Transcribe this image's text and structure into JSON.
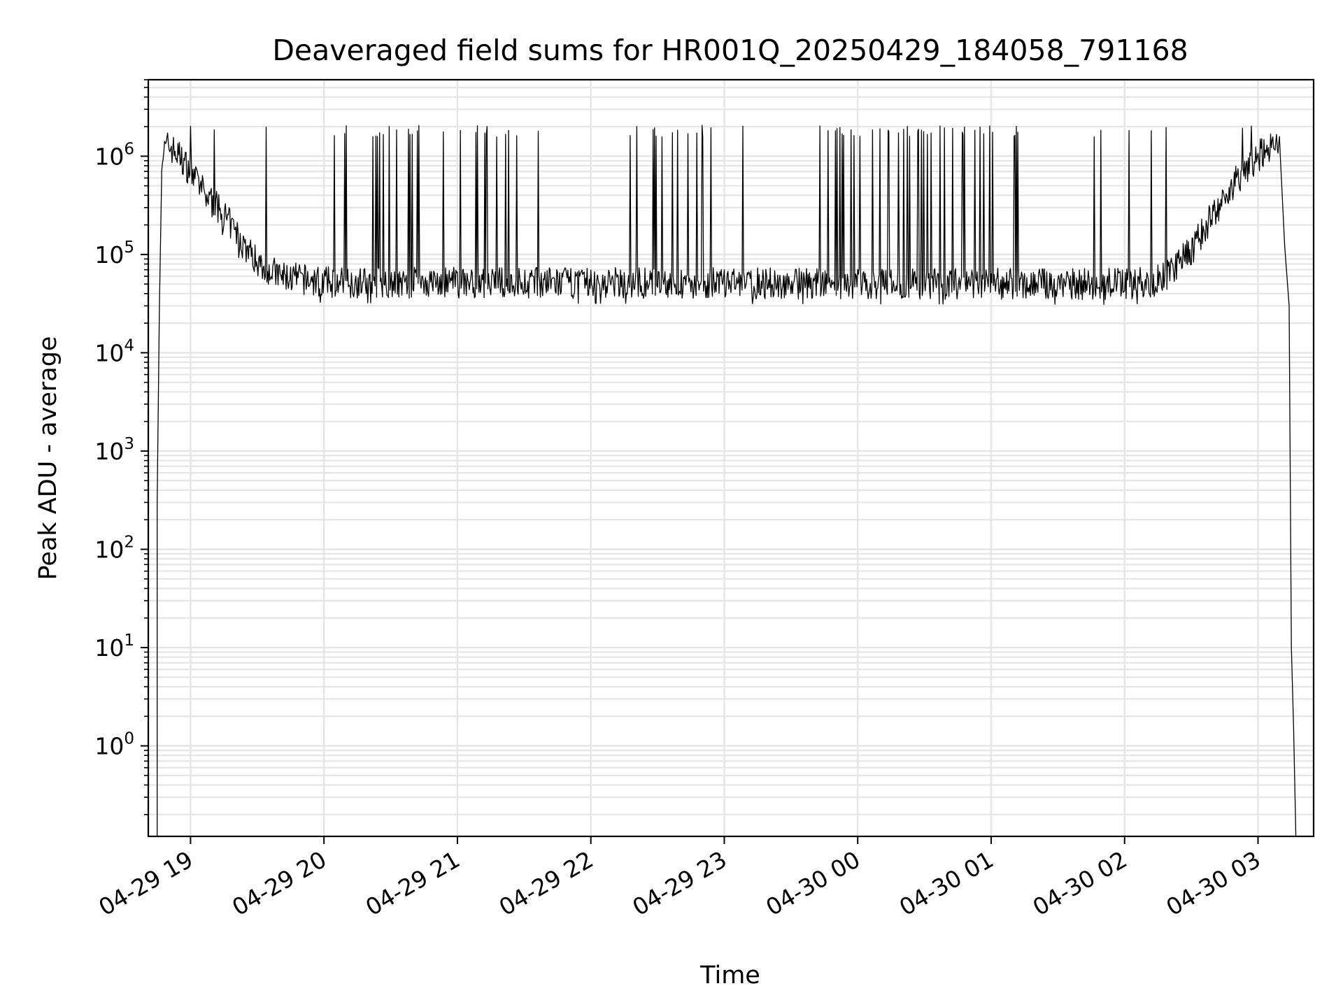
{
  "chart_data": {
    "type": "line",
    "title": "Deaveraged field sums for HR001Q_20250429_184058_791168",
    "xlabel": "Time",
    "ylabel": "Peak ADU - average",
    "yscale": "log",
    "ylim": [
      0.12,
      6000000
    ],
    "xlim": [
      "2025-04-29 18:41",
      "2025-04-30 03:25"
    ],
    "grid": true,
    "line_color": "#000000",
    "grid_color": "#e5e5e5",
    "x_ticks": [
      {
        "t": "2025-04-29 19:00",
        "label": "04-29 19"
      },
      {
        "t": "2025-04-29 20:00",
        "label": "04-29 20"
      },
      {
        "t": "2025-04-29 21:00",
        "label": "04-29 21"
      },
      {
        "t": "2025-04-29 22:00",
        "label": "04-29 22"
      },
      {
        "t": "2025-04-29 23:00",
        "label": "04-29 23"
      },
      {
        "t": "2025-04-30 00:00",
        "label": "04-30 00"
      },
      {
        "t": "2025-04-30 01:00",
        "label": "04-30 01"
      },
      {
        "t": "2025-04-30 02:00",
        "label": "04-30 02"
      },
      {
        "t": "2025-04-30 03:00",
        "label": "04-30 03"
      }
    ],
    "y_ticks": [
      {
        "exp": "0",
        "base": "10"
      },
      {
        "exp": "1",
        "base": "10"
      },
      {
        "exp": "2",
        "base": "10"
      },
      {
        "exp": "3",
        "base": "10"
      },
      {
        "exp": "4",
        "base": "10"
      },
      {
        "exp": "5",
        "base": "10"
      },
      {
        "exp": "6",
        "base": "10"
      }
    ],
    "series": [
      {
        "baseline": [
          [
            "2025-04-29 18:47",
            1000000
          ],
          [
            "2025-04-29 18:50",
            1300000
          ],
          [
            "2025-04-29 18:55",
            1000000
          ],
          [
            "2025-04-29 19:00",
            700000
          ],
          [
            "2025-04-29 19:06",
            420000
          ],
          [
            "2025-04-29 19:12",
            300000
          ],
          [
            "2025-04-29 19:18",
            200000
          ],
          [
            "2025-04-29 19:24",
            125000
          ],
          [
            "2025-04-29 19:30",
            85000
          ],
          [
            "2025-04-29 19:40",
            60000
          ],
          [
            "2025-04-29 20:00",
            52000
          ],
          [
            "2025-04-30 02:00",
            50000
          ],
          [
            "2025-04-30 02:12",
            52000
          ],
          [
            "2025-04-30 02:20",
            65000
          ],
          [
            "2025-04-30 02:30",
            110000
          ],
          [
            "2025-04-30 02:40",
            260000
          ],
          [
            "2025-04-30 02:50",
            550000
          ],
          [
            "2025-04-30 03:00",
            1000000
          ],
          [
            "2025-04-30 03:06",
            1300000
          ],
          [
            "2025-04-30 03:10",
            1100000
          ]
        ],
        "edges": {
          "start": [
            [
              "2025-04-29 18:45",
              0.12
            ],
            [
              "2025-04-29 18:45",
              300
            ],
            [
              "2025-04-29 18:46",
              30000
            ],
            [
              "2025-04-29 18:47",
              600000
            ]
          ],
          "end": [
            [
              "2025-04-30 03:12",
              120000
            ],
            [
              "2025-04-30 03:14",
              30000
            ],
            [
              "2025-04-30 03:15",
              10
            ],
            [
              "2025-04-30 03:16",
              1.5
            ],
            [
              "2025-04-30 03:17",
              0.12
            ]
          ]
        },
        "spike_peak": 1800000,
        "spike_dense_intervals": [
          [
            "2025-04-29 20:20",
            "2025-04-29 20:45"
          ],
          [
            "2025-04-29 21:10",
            "2025-04-29 21:30"
          ],
          [
            "2025-04-29 22:10",
            "2025-04-29 22:55"
          ],
          [
            "2025-04-29 23:50",
            "2025-04-30 01:15"
          ]
        ]
      }
    ]
  }
}
